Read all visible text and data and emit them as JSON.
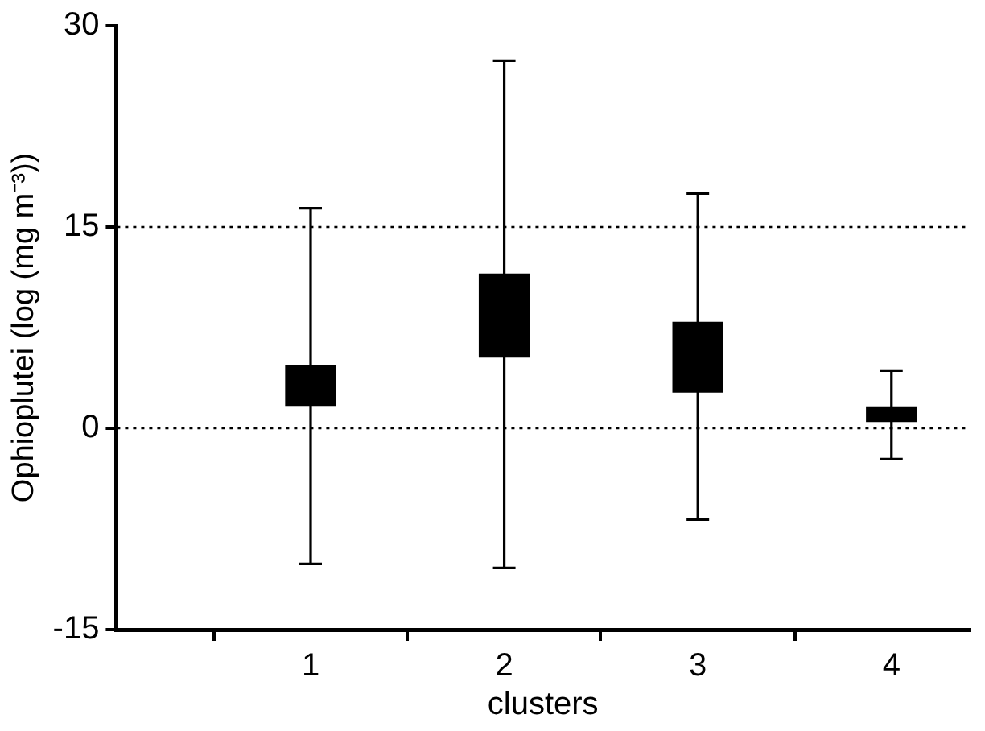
{
  "chart_data": {
    "type": "box",
    "categories": [
      "1",
      "2",
      "3",
      "4"
    ],
    "xlabel": "clusters",
    "ylabel": "Ophioplutei (log (mg m⁻³))",
    "ylim": [
      -15,
      30
    ],
    "yticks": [
      -15,
      0,
      15,
      30
    ],
    "color": "#000000",
    "boxes": [
      {
        "low": -10.1,
        "q1": 1.7,
        "q3": 4.7,
        "high": 16.4
      },
      {
        "low": -10.4,
        "q1": 5.3,
        "q3": 11.5,
        "high": 27.4
      },
      {
        "low": -6.8,
        "q1": 2.7,
        "q3": 7.9,
        "high": 17.5
      },
      {
        "low": -2.3,
        "q1": 0.5,
        "q3": 1.6,
        "high": 4.3
      }
    ],
    "ref_lines": [
      {
        "axis": "y",
        "value": 15,
        "color": "#000000",
        "line_style": "dotted"
      },
      {
        "axis": "y",
        "value": 0,
        "color": "#000000",
        "line_style": "dotted"
      }
    ]
  }
}
